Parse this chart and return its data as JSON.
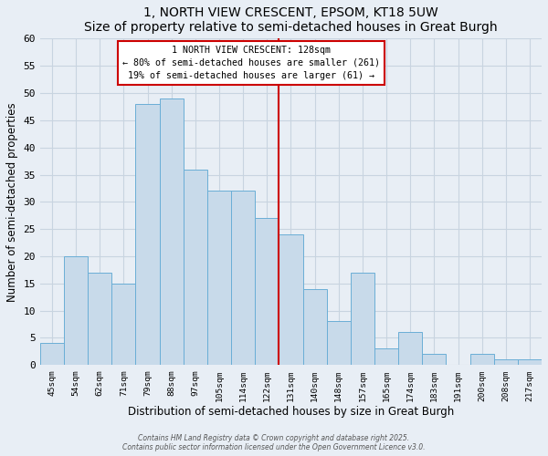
{
  "title": "1, NORTH VIEW CRESCENT, EPSOM, KT18 5UW",
  "subtitle": "Size of property relative to semi-detached houses in Great Burgh",
  "xlabel": "Distribution of semi-detached houses by size in Great Burgh",
  "ylabel": "Number of semi-detached properties",
  "categories": [
    "45sqm",
    "54sqm",
    "62sqm",
    "71sqm",
    "79sqm",
    "88sqm",
    "97sqm",
    "105sqm",
    "114sqm",
    "122sqm",
    "131sqm",
    "140sqm",
    "148sqm",
    "157sqm",
    "165sqm",
    "174sqm",
    "183sqm",
    "191sqm",
    "200sqm",
    "208sqm",
    "217sqm"
  ],
  "values": [
    4,
    20,
    17,
    15,
    48,
    49,
    36,
    32,
    32,
    27,
    24,
    14,
    8,
    17,
    3,
    6,
    2,
    0,
    2,
    1,
    1
  ],
  "bar_color": "#c8daea",
  "bar_edge_color": "#6aaed6",
  "ylim": [
    0,
    60
  ],
  "yticks": [
    0,
    5,
    10,
    15,
    20,
    25,
    30,
    35,
    40,
    45,
    50,
    55,
    60
  ],
  "property_line_index": 10,
  "annotation_title": "1 NORTH VIEW CRESCENT: 128sqm",
  "annotation_line1": "← 80% of semi-detached houses are smaller (261)",
  "annotation_line2": "19% of semi-detached houses are larger (61) →",
  "annotation_box_color": "#cc0000",
  "grid_color": "#c8d4e0",
  "background_color": "#e8eef5",
  "footer_line1": "Contains HM Land Registry data © Crown copyright and database right 2025.",
  "footer_line2": "Contains public sector information licensed under the Open Government Licence v3.0."
}
